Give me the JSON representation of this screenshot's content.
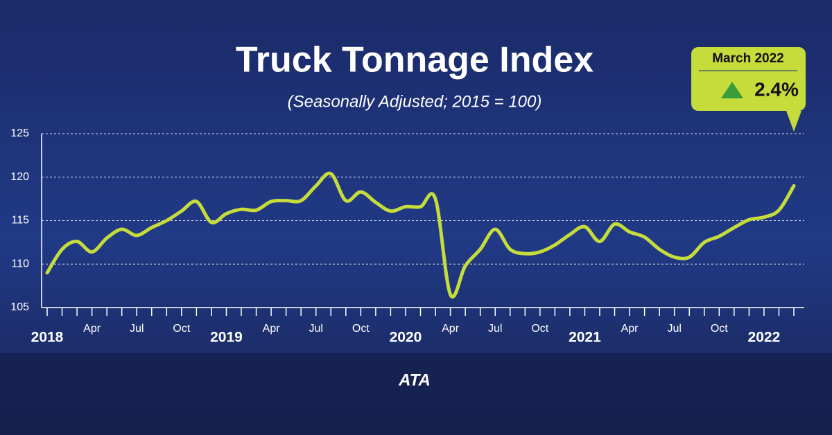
{
  "chart_data": {
    "type": "line",
    "title": "Truck Tonnage Index",
    "subtitle": "(Seasonally Adjusted; 2015 = 100)",
    "categories": [
      "2018",
      null,
      null,
      "Apr",
      null,
      null,
      "Jul",
      null,
      null,
      "Oct",
      null,
      null,
      "2019",
      null,
      null,
      "Apr",
      null,
      null,
      "Jul",
      null,
      null,
      "Oct",
      null,
      null,
      "2020",
      null,
      null,
      "Apr",
      null,
      null,
      "Jul",
      null,
      null,
      "Oct",
      null,
      null,
      "2021",
      null,
      null,
      "Apr",
      null,
      null,
      "Jul",
      null,
      null,
      "Oct",
      null,
      null,
      "2022",
      null,
      null
    ],
    "series": [
      {
        "name": "Truck Tonnage Index",
        "color": "#c5dc3b",
        "values": [
          109.0,
          111.7,
          112.6,
          111.4,
          113.0,
          114.0,
          113.3,
          114.2,
          115.0,
          116.1,
          117.2,
          114.8,
          115.8,
          116.3,
          116.2,
          117.2,
          117.3,
          117.3,
          119.0,
          120.4,
          117.3,
          118.3,
          117.1,
          116.1,
          116.6,
          116.6,
          117.5,
          106.5,
          109.8,
          111.7,
          114.0,
          111.7,
          111.2,
          111.4,
          112.2,
          113.4,
          114.3,
          112.6,
          114.6,
          113.7,
          113.1,
          111.7,
          110.8,
          110.8,
          112.5,
          113.2,
          114.2,
          115.1,
          115.4,
          116.2,
          119.0
        ]
      }
    ],
    "ylim": [
      105,
      125
    ],
    "yticks": [
      105,
      110,
      115,
      120,
      125
    ],
    "grid": true,
    "annotation": {
      "period": "March 2022",
      "change": "2.4%"
    },
    "logo": "ATA"
  }
}
